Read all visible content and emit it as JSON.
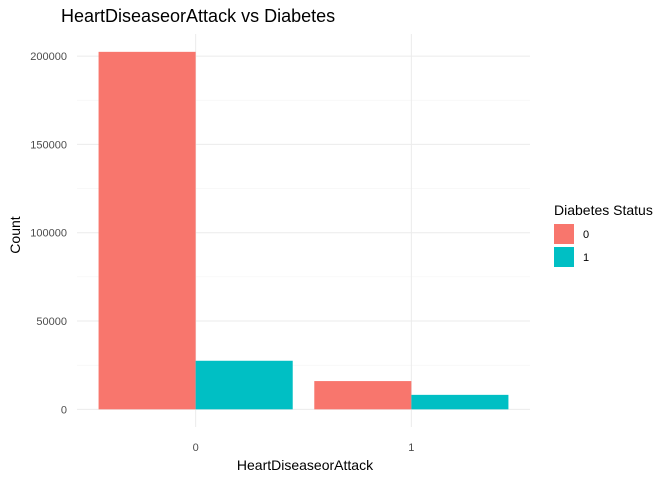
{
  "chart_data": {
    "type": "bar",
    "title": "HeartDiseaseorAttack vs Diabetes",
    "xlabel": "HeartDiseaseorAttack",
    "ylabel": "Count",
    "categories": [
      "0",
      "1"
    ],
    "series": [
      {
        "name": "0",
        "color": "#F8766D",
        "values": [
          202400,
          16000
        ]
      },
      {
        "name": "1",
        "color": "#00BFC4",
        "values": [
          27500,
          8200
        ]
      }
    ],
    "ylim": [
      -10000,
      212500
    ],
    "yticks": [
      0,
      50000,
      100000,
      150000,
      200000
    ],
    "ytick_labels": [
      "0",
      "50000",
      "100000",
      "150000",
      "200000"
    ],
    "grid": true,
    "legend": {
      "title": "Diabetes Status",
      "position": "right"
    }
  }
}
